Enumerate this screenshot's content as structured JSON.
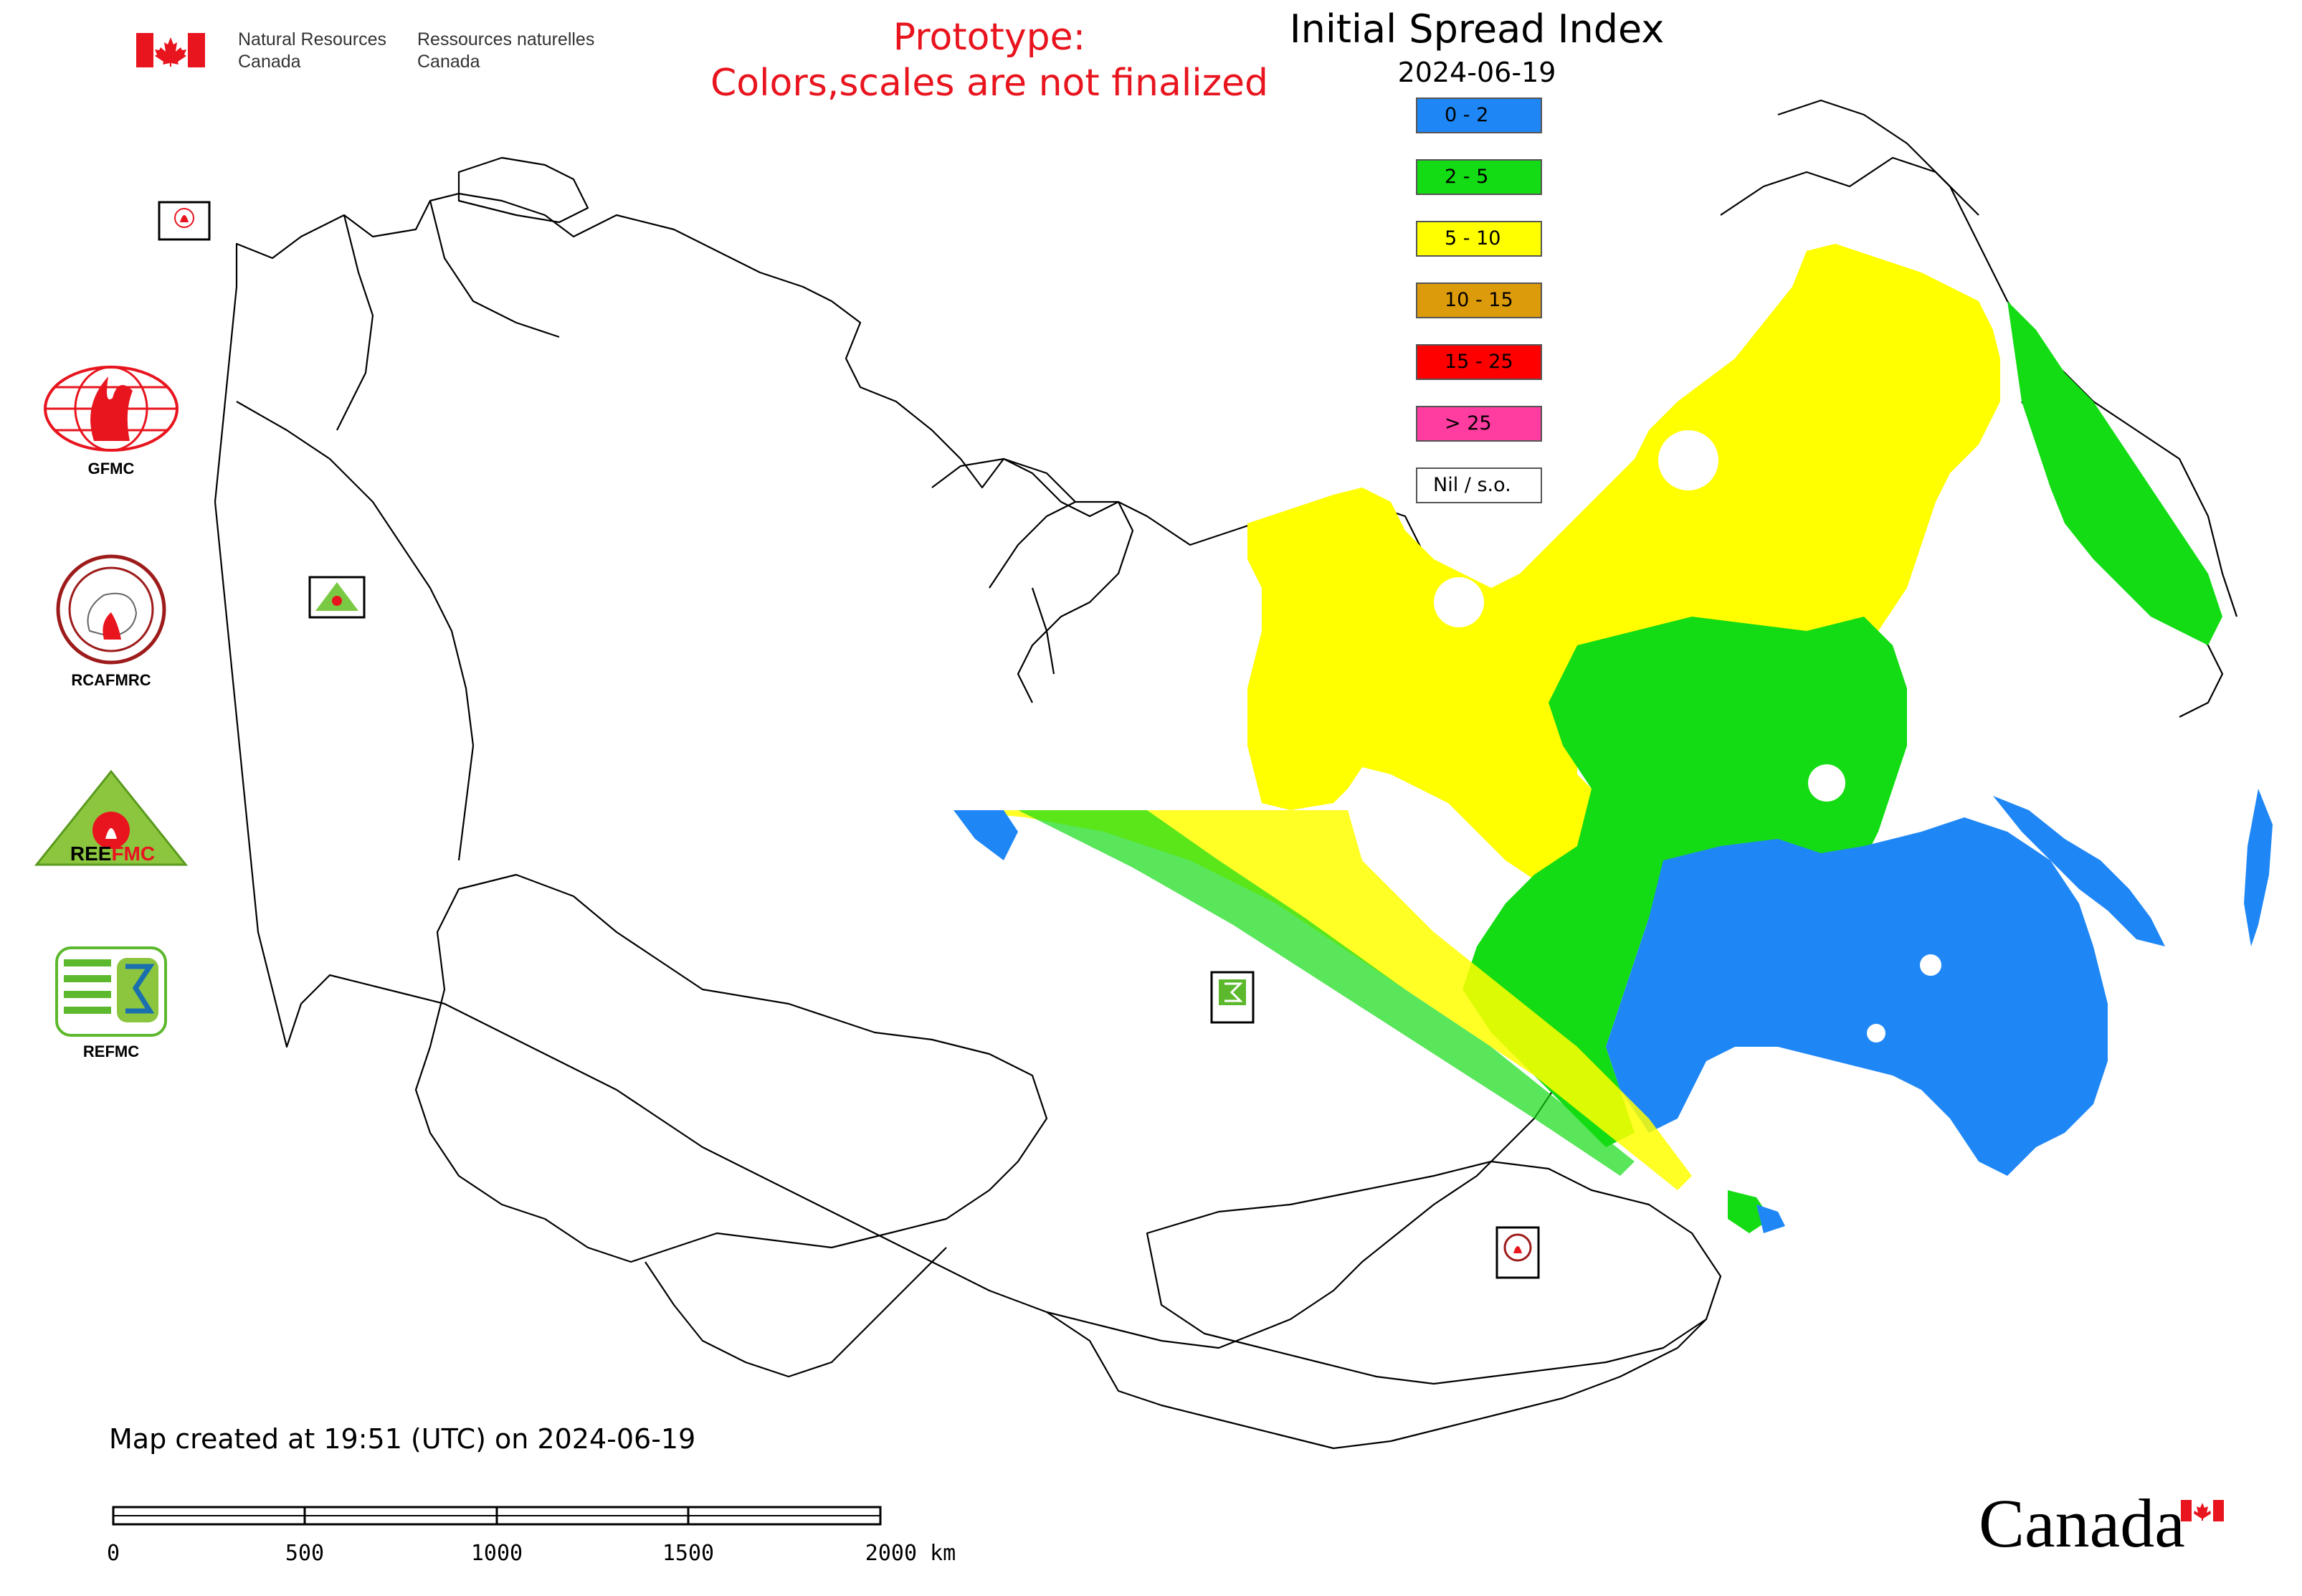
{
  "header": {
    "dept_en_line1": "Natural Resources",
    "dept_en_line2": "Canada",
    "dept_fr_line1": "Ressources naturelles",
    "dept_fr_line2": "Canada"
  },
  "notice": {
    "line1": "Prototype:",
    "line2": "Colors,scales are not finalized",
    "color": "#e8141e"
  },
  "map_title": "Initial Spread Index",
  "map_date": "2024-06-19",
  "legend": [
    {
      "label": "0 - 2",
      "color": "#1f87f5"
    },
    {
      "label": "2 - 5",
      "color": "#14dc14"
    },
    {
      "label": "5 - 10",
      "color": "#ffff00"
    },
    {
      "label": "10 - 15",
      "color": "#dc9b0a"
    },
    {
      "label": "15 - 25",
      "color": "#ff0000"
    },
    {
      "label": "> 25",
      "color": "#ff3ca0"
    },
    {
      "label": "Nil / s.o.",
      "color": "#ffffff"
    }
  ],
  "side_logos": [
    {
      "label": "GFMC",
      "icon": "gfmc-globe-fire-icon"
    },
    {
      "label": "RCAFMRC",
      "icon": "rcafmrc-seal-icon"
    },
    {
      "label": "",
      "icon": "reefmc-triangle-logo",
      "logo_text": "REEFMC"
    },
    {
      "label": "REFMC",
      "icon": "refmc-sigma-logo"
    }
  ],
  "map_markers": [
    {
      "label": "GFMC",
      "icon": "gfmc-marker-icon"
    },
    {
      "label": "REEFMC",
      "icon": "reefmc-marker-icon"
    },
    {
      "label": "REFMC",
      "icon": "refmc-marker-icon"
    },
    {
      "label": "RCAFMRC",
      "icon": "rcafmrc-marker-icon"
    }
  ],
  "footer": {
    "created": "Map created at 19:51 (UTC) on 2024-06-19",
    "scale_ticks": [
      "0",
      "500",
      "1000",
      "1500",
      "2000 km"
    ],
    "wordmark": "Canada"
  }
}
